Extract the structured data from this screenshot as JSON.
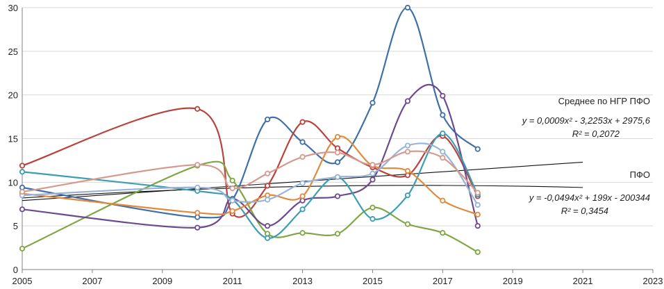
{
  "chart_data": {
    "type": "line",
    "xlim": [
      2005,
      2023
    ],
    "ylim": [
      0,
      30
    ],
    "x_ticks": [
      2005,
      2007,
      2009,
      2011,
      2013,
      2015,
      2017,
      2019,
      2021,
      2023
    ],
    "y_ticks": [
      0,
      5,
      10,
      15,
      20,
      25,
      30
    ],
    "grid": "horizontal",
    "legend": "none",
    "series": [
      {
        "color": "#3e6fa8",
        "x": [
          2005,
          2010,
          2011,
          2012,
          2013,
          2014,
          2015,
          2016,
          2017,
          2018
        ],
        "values": [
          9.4,
          6.0,
          8.0,
          17.2,
          14.6,
          12.3,
          19.1,
          30.0,
          17.7,
          13.8
        ]
      },
      {
        "color": "#b9423f",
        "x": [
          2005,
          2010,
          2011,
          2012,
          2013,
          2014,
          2015,
          2016,
          2017,
          2018
        ],
        "values": [
          11.9,
          18.4,
          6.4,
          9.6,
          16.9,
          13.9,
          11.7,
          10.8,
          15.3,
          8.4
        ]
      },
      {
        "color": "#7fa644",
        "x": [
          2005,
          2010,
          2011,
          2012,
          2013,
          2014,
          2015,
          2016,
          2017,
          2018
        ],
        "values": [
          2.4,
          11.9,
          10.2,
          4.1,
          4.2,
          4.1,
          7.1,
          5.2,
          4.2,
          2.0
        ]
      },
      {
        "color": "#6d4a8f",
        "x": [
          2005,
          2010,
          2011,
          2012,
          2013,
          2014,
          2015,
          2016,
          2017,
          2018
        ],
        "values": [
          6.9,
          4.8,
          8.1,
          5.0,
          7.9,
          8.4,
          10.3,
          19.3,
          19.9,
          5.0
        ]
      },
      {
        "color": "#3c9db3",
        "x": [
          2005,
          2010,
          2011,
          2012,
          2013,
          2014,
          2015,
          2016,
          2017,
          2018
        ],
        "values": [
          11.2,
          9.0,
          8.0,
          3.6,
          6.9,
          10.6,
          5.8,
          8.5,
          15.6,
          8.6
        ]
      },
      {
        "color": "#e3893b",
        "x": [
          2005,
          2010,
          2011,
          2012,
          2013,
          2014,
          2015,
          2016,
          2017,
          2018
        ],
        "values": [
          8.7,
          6.5,
          6.7,
          8.5,
          8.4,
          15.2,
          11.9,
          11.3,
          7.9,
          6.3
        ]
      },
      {
        "color": "#98b3d8",
        "x": [
          2005,
          2010,
          2011,
          2012,
          2013,
          2014,
          2015,
          2016,
          2017,
          2018
        ],
        "values": [
          8.5,
          9.4,
          7.9,
          8.0,
          9.9,
          10.6,
          11.0,
          14.2,
          13.5,
          7.4
        ]
      },
      {
        "color": "#d49a8e",
        "x": [
          2005,
          2010,
          2011,
          2012,
          2013,
          2014,
          2015,
          2016,
          2017,
          2018
        ],
        "values": [
          8.9,
          12.0,
          9.3,
          11.0,
          12.9,
          13.4,
          12.0,
          13.5,
          12.8,
          8.8
        ]
      }
    ],
    "trendlines": [
      {
        "x_range": [
          2005,
          2021
        ],
        "coefficients": [
          0.0009,
          -3.2253,
          2975.6
        ],
        "y_range": [
          7.9,
          12.3
        ]
      },
      {
        "x_range": [
          2005,
          2021
        ],
        "coefficients": [
          -0.0494,
          199,
          -200344
        ],
        "y_range": [
          8.2,
          9.4
        ]
      }
    ],
    "annotations": [
      {
        "id": "mean",
        "text": "Среднее по НГР ПФО"
      },
      {
        "id": "eq1",
        "text": "y = 0,0009x² - 3,2253x + 2975,6"
      },
      {
        "id": "r1",
        "text": "R² = 0,2072"
      },
      {
        "id": "pfo",
        "text": "ПФО"
      },
      {
        "id": "eq2",
        "text": "y = -0,0494x² + 199x - 200344"
      },
      {
        "id": "r2",
        "text": "R² = 0,3454"
      }
    ]
  }
}
